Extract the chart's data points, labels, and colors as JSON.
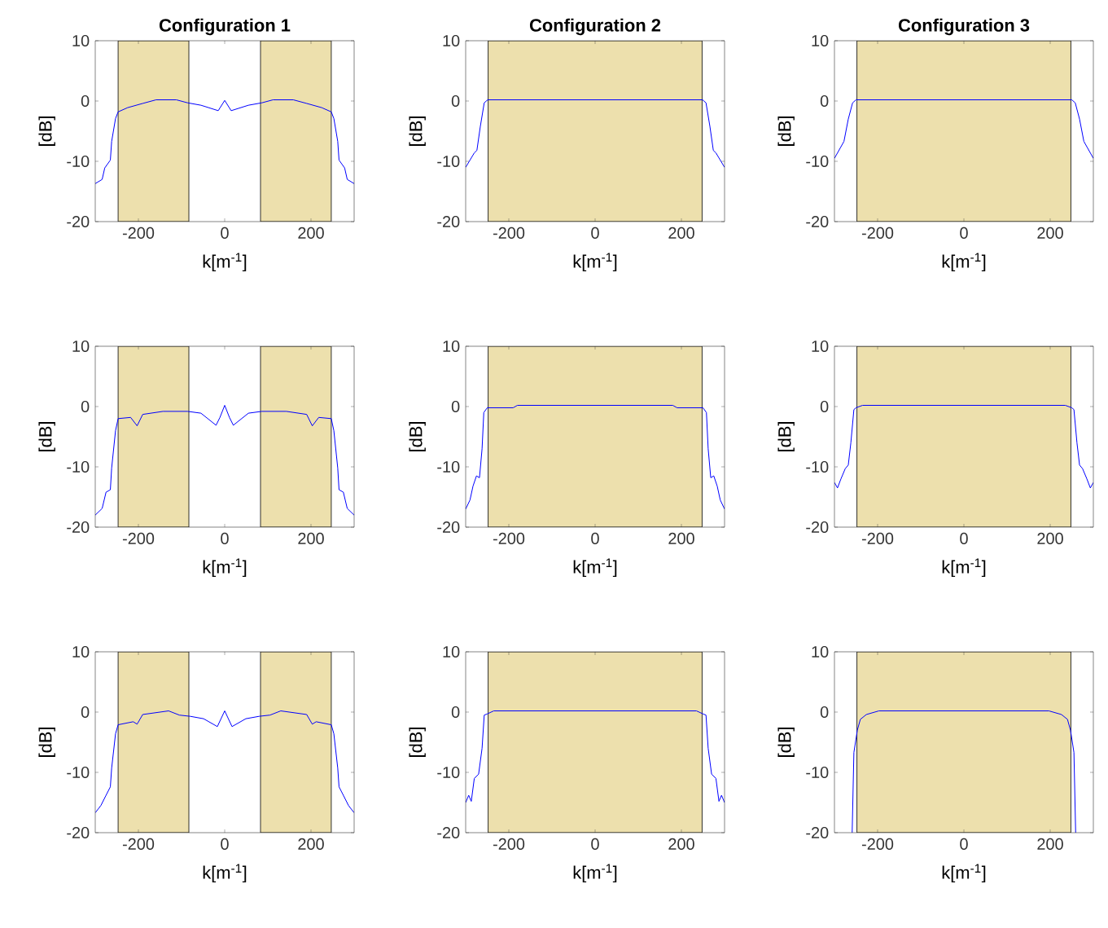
{
  "chart_data": [
    {
      "type": "line",
      "title": "Configuration 1",
      "xlabel": "k[m$^{-1}$]",
      "ylabel": "[dB]",
      "color": "#0000ff",
      "xlim": [
        -300,
        300
      ],
      "ylim": [
        -20,
        10
      ],
      "xticks": [
        -200,
        0,
        200
      ],
      "yticks": [
        -20,
        -10,
        0,
        10
      ],
      "x": [
        -300,
        -284,
        -278,
        -265,
        -262,
        -253,
        -247,
        -225,
        -190,
        -159,
        -112,
        -86,
        -55,
        -15,
        0,
        15,
        55,
        86,
        112,
        159,
        190,
        225,
        247,
        253,
        262,
        265,
        278,
        284,
        300
      ],
      "values": [
        -13.7,
        -13,
        -11.1,
        -9.8,
        -6.7,
        -2.9,
        -1.8,
        -1.1,
        -0.4,
        0.2,
        0.2,
        -0.3,
        -0.7,
        -1.6,
        0.1,
        -1.6,
        -0.7,
        -0.3,
        0.2,
        0.2,
        -0.4,
        -1.1,
        -1.8,
        -2.9,
        -6.7,
        -9.8,
        -11.1,
        -13,
        -13.7
      ],
      "bands": [
        {
          "axis": "x",
          "from": -247,
          "to": -83,
          "color": "#ede0ad"
        },
        {
          "axis": "x",
          "from": 83,
          "to": 247,
          "color": "#ede0ad"
        }
      ]
    },
    {
      "type": "line",
      "title": "Configuration 2",
      "xlabel": "k[m$^{-1}$]",
      "ylabel": "[dB]",
      "color": "#0000ff",
      "xlim": [
        -300,
        300
      ],
      "ylim": [
        -20,
        10
      ],
      "xticks": [
        -200,
        0,
        200
      ],
      "yticks": [
        -20,
        -10,
        0,
        10
      ],
      "x": [
        -300,
        -280,
        -274,
        -266,
        -257,
        -249,
        249,
        257,
        266,
        274,
        280,
        300
      ],
      "values": [
        -11,
        -8.6,
        -8.2,
        -4.2,
        -0.3,
        0.2,
        0.2,
        -0.3,
        -4.2,
        -8.2,
        -8.6,
        -11
      ],
      "bands": [
        {
          "axis": "x",
          "from": -248,
          "to": 248,
          "color": "#ede0ad"
        }
      ]
    },
    {
      "type": "line",
      "title": "Configuration 3",
      "xlabel": "k[m$^{-1}$]",
      "ylabel": "[dB]",
      "color": "#0000ff",
      "xlim": [
        -300,
        300
      ],
      "ylim": [
        -20,
        10
      ],
      "xticks": [
        -200,
        0,
        200
      ],
      "yticks": [
        -20,
        -10,
        0,
        10
      ],
      "x": [
        -300,
        -278,
        -268,
        -258,
        -250,
        250,
        258,
        268,
        278,
        300
      ],
      "values": [
        -9.5,
        -6.7,
        -3,
        -0.3,
        0.2,
        0.2,
        -0.3,
        -3,
        -6.7,
        -9.5
      ],
      "bands": [
        {
          "axis": "x",
          "from": -248,
          "to": 248,
          "color": "#ede0ad"
        }
      ]
    },
    {
      "type": "line",
      "xlabel": "k[m$^{-1}$]",
      "ylabel": "[dB]",
      "color": "#0000ff",
      "xlim": [
        -300,
        300
      ],
      "ylim": [
        -20,
        10
      ],
      "xticks": [
        -200,
        0,
        200
      ],
      "yticks": [
        -20,
        -10,
        0,
        10
      ],
      "x": [
        -300,
        -284,
        -275,
        -265,
        -262,
        -253,
        -247,
        -218,
        -203,
        -190,
        -143,
        -86,
        -55,
        -20,
        -11,
        0,
        11,
        20,
        55,
        86,
        143,
        190,
        203,
        218,
        247,
        253,
        262,
        265,
        275,
        284,
        300
      ],
      "values": [
        -18,
        -16.9,
        -14.2,
        -13.8,
        -10.2,
        -4,
        -2,
        -1.8,
        -3.2,
        -1.3,
        -0.8,
        -0.8,
        -1.1,
        -3.1,
        -1.8,
        0.2,
        -1.8,
        -3.1,
        -1.1,
        -0.8,
        -0.8,
        -1.3,
        -3.2,
        -1.8,
        -2,
        -4,
        -10.2,
        -13.8,
        -14.2,
        -16.9,
        -18
      ],
      "bands": [
        {
          "axis": "x",
          "from": -247,
          "to": -83,
          "color": "#ede0ad"
        },
        {
          "axis": "x",
          "from": 83,
          "to": 247,
          "color": "#ede0ad"
        }
      ]
    },
    {
      "type": "line",
      "xlabel": "k[m$^{-1}$]",
      "ylabel": "[dB]",
      "color": "#0000ff",
      "xlim": [
        -300,
        300
      ],
      "ylim": [
        -20,
        10
      ],
      "xticks": [
        -200,
        0,
        200
      ],
      "yticks": [
        -20,
        -10,
        0,
        10
      ],
      "x": [
        -300,
        -290,
        -283,
        -275,
        -268,
        -262,
        -258,
        -250,
        -190,
        -180,
        180,
        190,
        250,
        258,
        262,
        268,
        275,
        283,
        290,
        300
      ],
      "values": [
        -17,
        -15.5,
        -13.2,
        -11.5,
        -11.8,
        -7,
        -1,
        -0.2,
        -0.2,
        0.2,
        0.2,
        -0.2,
        -0.2,
        -1,
        -7,
        -11.8,
        -11.5,
        -13.2,
        -15.5,
        -17
      ],
      "bands": [
        {
          "axis": "x",
          "from": -248,
          "to": 248,
          "color": "#ede0ad"
        }
      ]
    },
    {
      "type": "line",
      "xlabel": "k[m$^{-1}$]",
      "ylabel": "[dB]",
      "color": "#0000ff",
      "xlim": [
        -300,
        300
      ],
      "ylim": [
        -20,
        10
      ],
      "xticks": [
        -200,
        0,
        200
      ],
      "yticks": [
        -20,
        -10,
        0,
        10
      ],
      "x": [
        -300,
        -293,
        -285,
        -275,
        -268,
        -262,
        -255,
        -250,
        -235,
        235,
        250,
        255,
        262,
        268,
        275,
        285,
        293,
        300
      ],
      "values": [
        -12.6,
        -13.5,
        -12,
        -10.3,
        -9.7,
        -6,
        -0.5,
        -0.2,
        0.2,
        0.2,
        -0.2,
        -0.5,
        -6,
        -9.7,
        -10.3,
        -12,
        -13.5,
        -12.6
      ],
      "bands": [
        {
          "axis": "x",
          "from": -248,
          "to": 248,
          "color": "#ede0ad"
        }
      ]
    },
    {
      "type": "line",
      "xlabel": "k[m$^{-1}$]",
      "ylabel": "[dB]",
      "color": "#0000ff",
      "xlim": [
        -300,
        300
      ],
      "ylim": [
        -20,
        10
      ],
      "xticks": [
        -200,
        0,
        200
      ],
      "yticks": [
        -20,
        -10,
        0,
        10
      ],
      "x": [
        -300,
        -287,
        -275,
        -265,
        -262,
        -253,
        -247,
        -212,
        -203,
        -190,
        -130,
        -105,
        -80,
        -49,
        -17,
        0,
        17,
        49,
        80,
        105,
        130,
        190,
        203,
        212,
        247,
        253,
        262,
        265,
        275,
        287,
        300
      ],
      "values": [
        -16.7,
        -15.5,
        -13.8,
        -12.4,
        -9.3,
        -3.6,
        -2.1,
        -1.6,
        -2,
        -0.4,
        0.2,
        -0.5,
        -0.7,
        -1.1,
        -2.4,
        0.2,
        -2.4,
        -1.1,
        -0.7,
        -0.5,
        0.2,
        -0.4,
        -2,
        -1.6,
        -2.1,
        -3.6,
        -9.3,
        -12.4,
        -13.8,
        -15.5,
        -16.7
      ],
      "bands": [
        {
          "axis": "x",
          "from": -247,
          "to": -83,
          "color": "#ede0ad"
        },
        {
          "axis": "x",
          "from": 83,
          "to": 247,
          "color": "#ede0ad"
        }
      ]
    },
    {
      "type": "line",
      "xlabel": "k[m$^{-1}$]",
      "ylabel": "[dB]",
      "color": "#0000ff",
      "xlim": [
        -300,
        300
      ],
      "ylim": [
        -20,
        10
      ],
      "xticks": [
        -200,
        0,
        200
      ],
      "yticks": [
        -20,
        -10,
        0,
        10
      ],
      "x": [
        -300,
        -293,
        -287,
        -280,
        -270,
        -262,
        -257,
        -250,
        -235,
        235,
        250,
        257,
        262,
        270,
        280,
        287,
        293,
        300
      ],
      "values": [
        -15,
        -13.8,
        -14.8,
        -11,
        -10.3,
        -6,
        -0.5,
        -0.3,
        0.2,
        0.2,
        -0.3,
        -0.5,
        -6,
        -10.3,
        -11,
        -14.8,
        -13.8,
        -15
      ],
      "bands": [
        {
          "axis": "x",
          "from": -248,
          "to": 248,
          "color": "#ede0ad"
        }
      ]
    },
    {
      "type": "line",
      "xlabel": "k[m$^{-1}$]",
      "ylabel": "[dB]",
      "color": "#0000ff",
      "xlim": [
        -300,
        300
      ],
      "ylim": [
        -20,
        10
      ],
      "xticks": [
        -200,
        0,
        200
      ],
      "yticks": [
        -20,
        -10,
        0,
        10
      ],
      "x": [
        -259,
        -255,
        -247,
        -240,
        -226,
        -197,
        197,
        226,
        240,
        247,
        255,
        259
      ],
      "values": [
        -20,
        -6.7,
        -3,
        -1.2,
        -0.4,
        0.2,
        0.2,
        -0.4,
        -1.2,
        -3,
        -6.7,
        -20
      ],
      "bands": [
        {
          "axis": "x",
          "from": -248,
          "to": 248,
          "color": "#ede0ad"
        }
      ]
    }
  ]
}
